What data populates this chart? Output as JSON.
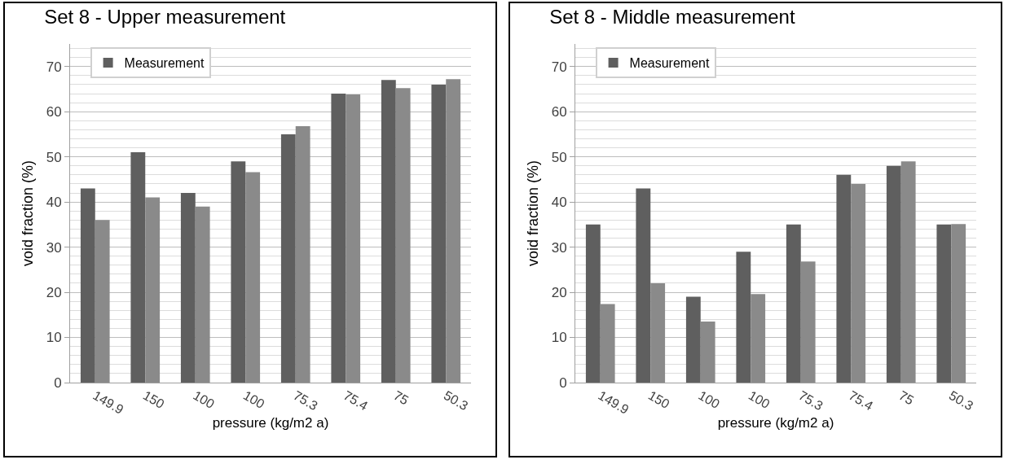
{
  "chart_data": [
    {
      "type": "bar",
      "title": "Set 8 - Upper measurement",
      "xlabel": "pressure (kg/m2 a)",
      "ylabel": "void fraction (%)",
      "categories": [
        "149.9",
        "150",
        "100",
        "100",
        "75.3",
        "75.4",
        "75",
        "50.3"
      ],
      "series": [
        {
          "name": "Measurement",
          "color": "#5f5f5f",
          "values": [
            43,
            51,
            42,
            49,
            55,
            64,
            67,
            66
          ]
        },
        {
          "color": "#8a8a8a",
          "values": [
            36,
            41,
            39,
            46.6,
            56.8,
            63.8,
            65.2,
            67.2
          ]
        }
      ],
      "ylim": [
        0,
        75
      ],
      "yticks": [
        0,
        10,
        20,
        30,
        40,
        50,
        60,
        70
      ],
      "grid": "y",
      "legend": "top left"
    },
    {
      "type": "bar",
      "title": "Set 8 - Middle measurement",
      "xlabel": "pressure (kg/m2 a)",
      "ylabel": "void fraction (%)",
      "categories": [
        "149.9",
        "150",
        "100",
        "100",
        "75.3",
        "75.4",
        "75",
        "50.3"
      ],
      "series": [
        {
          "name": "Measurement",
          "color": "#5f5f5f",
          "values": [
            35,
            43,
            19,
            29,
            35,
            46,
            48,
            35
          ]
        },
        {
          "color": "#8a8a8a",
          "values": [
            17.4,
            22,
            13.5,
            19.6,
            26.8,
            44,
            49,
            35.1
          ]
        }
      ],
      "ylim": [
        0,
        75
      ],
      "yticks": [
        0,
        10,
        20,
        30,
        40,
        50,
        60,
        70
      ],
      "grid": "y",
      "legend": "top left"
    }
  ]
}
